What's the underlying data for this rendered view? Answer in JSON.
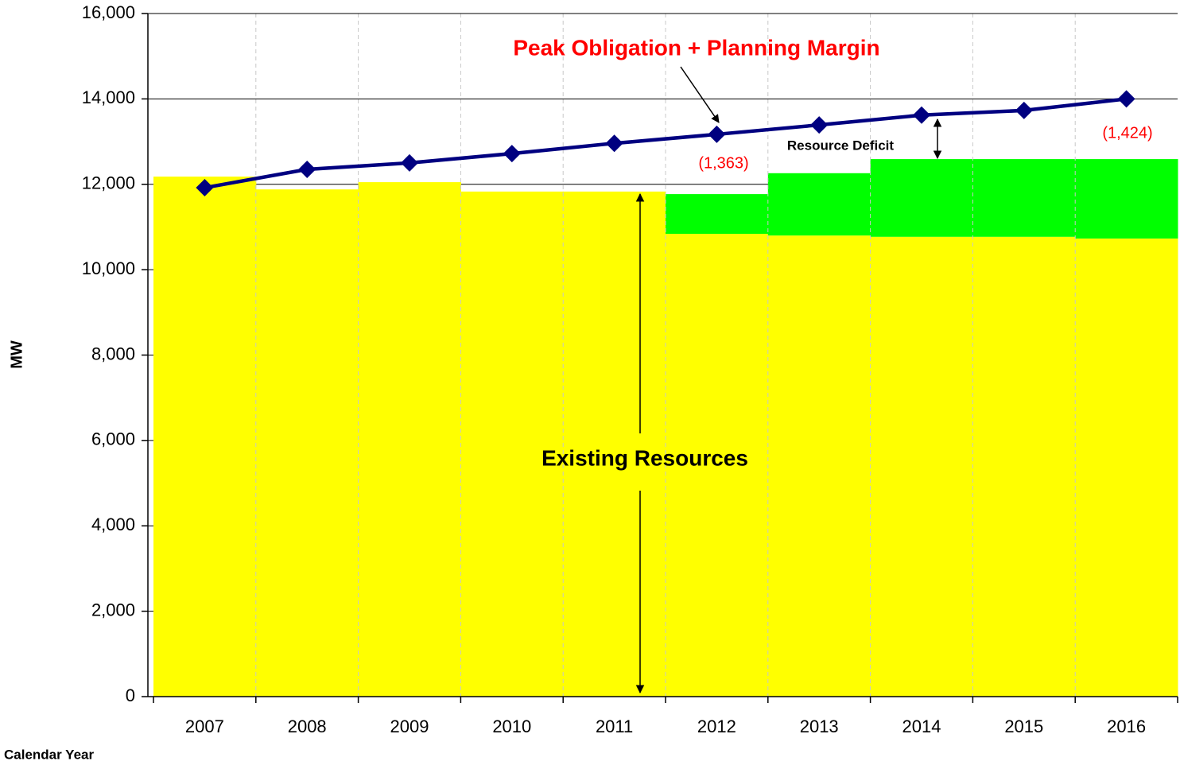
{
  "chart_data": {
    "type": "bar",
    "stacked": true,
    "y_label": "MW",
    "x_label": "Calendar Year",
    "categories": [
      "2007",
      "2008",
      "2009",
      "2010",
      "2011",
      "2012",
      "2013",
      "2014",
      "2015",
      "2016"
    ],
    "series": [
      {
        "type": "bar",
        "color": "#ffff00",
        "values": [
          12180,
          11880,
          12050,
          11830,
          11830,
          10840,
          10800,
          10770,
          10770,
          10730
        ]
      },
      {
        "type": "bar",
        "color": "#00ff00",
        "values": [
          0,
          0,
          0,
          0,
          0,
          930,
          1460,
          1820,
          1820,
          1860
        ]
      },
      {
        "type": "line",
        "color": "#000080",
        "values": [
          11920,
          12350,
          12500,
          12720,
          12960,
          13170,
          13390,
          13620,
          13730,
          14000
        ]
      }
    ],
    "ylim": [
      0,
      16000
    ],
    "yticks": [
      0,
      {
        "value": 2000,
        "label": "2,000"
      },
      {
        "value": 4000,
        "label": "4,000"
      },
      {
        "value": 6000,
        "label": "6,000"
      },
      {
        "value": 8000,
        "label": "8,000"
      },
      {
        "value": 10000,
        "label": "10,000"
      },
      {
        "value": 12000,
        "label": "12,000"
      },
      {
        "value": 14000,
        "label": "14,000"
      },
      {
        "value": 16000,
        "label": "16,000"
      }
    ],
    "grid": true,
    "annotations": [
      "Peak Obligation + Planning Margin",
      "Resource Deficit",
      "(1,363)",
      "(1,424)",
      "Existing Resources"
    ]
  }
}
